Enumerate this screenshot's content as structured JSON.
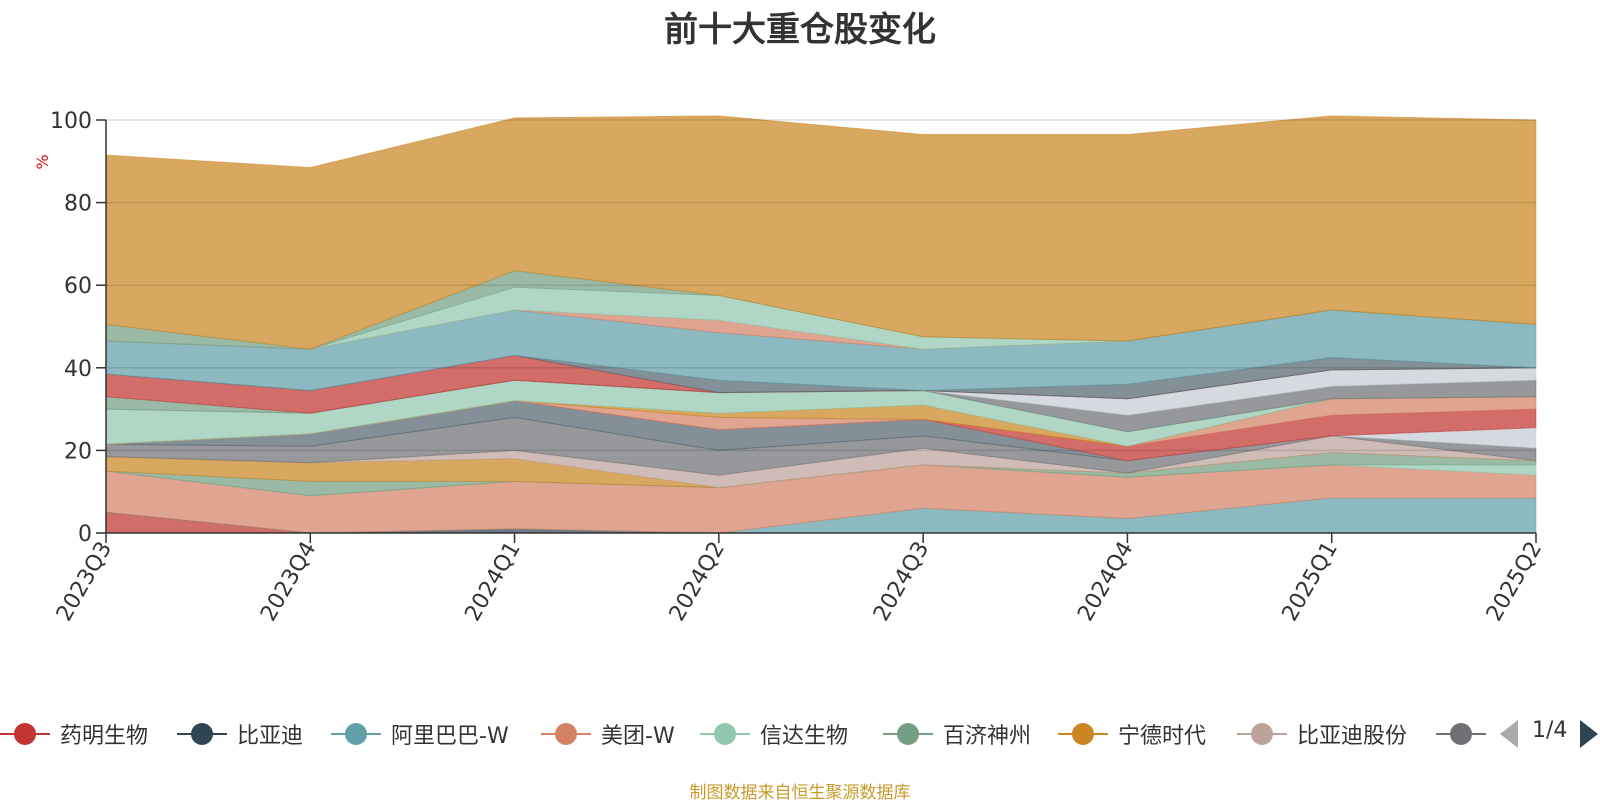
{
  "chart_data": {
    "type": "area",
    "title": "前十大重仓股变化",
    "ylabel": "%",
    "ylim": [
      0,
      100
    ],
    "yticks": [
      "0",
      "20",
      "40",
      "60",
      "80",
      "100"
    ],
    "categories": [
      "2023Q3",
      "2023Q4",
      "2024Q1",
      "2024Q2",
      "2024Q3",
      "2024Q4",
      "2025Q1",
      "2025Q2"
    ],
    "stacked": true,
    "series": [
      {
        "name": "药明生物",
        "color": "#c23531",
        "values": [
          5,
          0,
          0,
          0,
          0,
          0,
          0,
          0
        ]
      },
      {
        "name": "比亚迪",
        "color": "#2f4554",
        "values": [
          0,
          0,
          1,
          0,
          0,
          0,
          0,
          0
        ]
      },
      {
        "name": "阿里巴巴-W",
        "color": "#61a0a8",
        "values": [
          0,
          0,
          0,
          0,
          6,
          3.5,
          8.5,
          8.5
        ]
      },
      {
        "name": "美团-W",
        "color": "#d48265",
        "values": [
          10,
          9,
          11.5,
          11,
          10.5,
          10,
          8,
          5.5
        ]
      },
      {
        "name": "信达生物",
        "color": "#91c7ae",
        "values": [
          0,
          0,
          0,
          0,
          0,
          0,
          0,
          2.5
        ]
      },
      {
        "name": "百济神州",
        "color": "#749f83",
        "values": [
          0,
          3.5,
          0,
          0,
          0,
          1,
          3,
          1
        ]
      },
      {
        "name": "宁德时代",
        "color": "#ca8622",
        "values": [
          3.5,
          4.5,
          5.5,
          0,
          0,
          0,
          0,
          0
        ]
      },
      {
        "name": "比亚迪股份",
        "color": "#bda29a",
        "values": [
          0,
          0,
          2,
          3,
          4,
          0,
          4,
          0
        ]
      },
      {
        "name": "",
        "color": "#6e7074",
        "values": [
          3,
          4,
          8,
          6,
          3,
          3,
          0,
          3
        ]
      },
      {
        "name": "",
        "color": "#546570",
        "values": [
          0,
          3,
          4,
          5,
          4,
          0,
          0,
          0
        ]
      },
      {
        "name": "",
        "color": "#c4ccd3",
        "values": [
          0,
          0,
          0,
          0,
          0,
          0,
          0,
          5
        ]
      },
      {
        "name": "",
        "color": "#c23531",
        "values": [
          0,
          0,
          0,
          0,
          0,
          3.5,
          5,
          4.5
        ]
      },
      {
        "name": "",
        "color": "#d48265",
        "values": [
          0,
          0,
          0,
          3,
          0,
          0,
          4,
          3
        ]
      },
      {
        "name": "",
        "color": "#ca8622",
        "values": [
          0,
          0,
          0,
          1,
          3.5,
          0,
          0,
          0
        ]
      },
      {
        "name": "",
        "color": "#91c7ae",
        "values": [
          8.5,
          5,
          5,
          5,
          3.5,
          3.5,
          0,
          0
        ]
      },
      {
        "name": "",
        "color": "#6e7074",
        "values": [
          0,
          0,
          0,
          0,
          0,
          4,
          3,
          4
        ]
      },
      {
        "name": "",
        "color": "#c4ccd3",
        "values": [
          0,
          0,
          0,
          0,
          0,
          4,
          4,
          3
        ]
      },
      {
        "name": "",
        "color": "#749f83",
        "values": [
          3,
          0,
          0,
          0,
          0,
          0,
          0,
          0
        ]
      },
      {
        "name": "",
        "color": "#c23531",
        "values": [
          5.5,
          5.5,
          6,
          0,
          0,
          0,
          0,
          0
        ]
      },
      {
        "name": "",
        "color": "#546570",
        "values": [
          0,
          0,
          0,
          3,
          0,
          3.5,
          3,
          0
        ]
      },
      {
        "name": "",
        "color": "#61a0a8",
        "values": [
          8,
          10,
          11,
          11.5,
          10,
          10.5,
          11.5,
          10.5
        ]
      },
      {
        "name": "",
        "color": "#d48265",
        "values": [
          0,
          0,
          0,
          3,
          0,
          0,
          0,
          0
        ]
      },
      {
        "name": "",
        "color": "#91c7ae",
        "values": [
          0,
          0,
          5.5,
          6,
          3,
          0,
          0,
          0
        ]
      },
      {
        "name": "",
        "color": "#749f83",
        "values": [
          4,
          0,
          4,
          0,
          0,
          0,
          0,
          0
        ]
      },
      {
        "name": "",
        "color": "#ca8622",
        "values": [
          41,
          44,
          37,
          43.5,
          49,
          50,
          47,
          49.5
        ]
      }
    ],
    "grid": true
  },
  "legend": {
    "items": [
      {
        "label": "药明生物",
        "color": "#c23531"
      },
      {
        "label": "比亚迪",
        "color": "#2f4554"
      },
      {
        "label": "阿里巴巴-W",
        "color": "#61a0a8"
      },
      {
        "label": "美团-W",
        "color": "#d48265"
      },
      {
        "label": "信达生物",
        "color": "#91c7ae"
      },
      {
        "label": "百济神州",
        "color": "#749f83"
      },
      {
        "label": "宁德时代",
        "color": "#ca8622"
      },
      {
        "label": "比亚迪股份",
        "color": "#bda29a"
      },
      {
        "label": "",
        "color": "#6e7074"
      }
    ],
    "page": "1/4"
  },
  "source_note": "制图数据来自恒生聚源数据库"
}
